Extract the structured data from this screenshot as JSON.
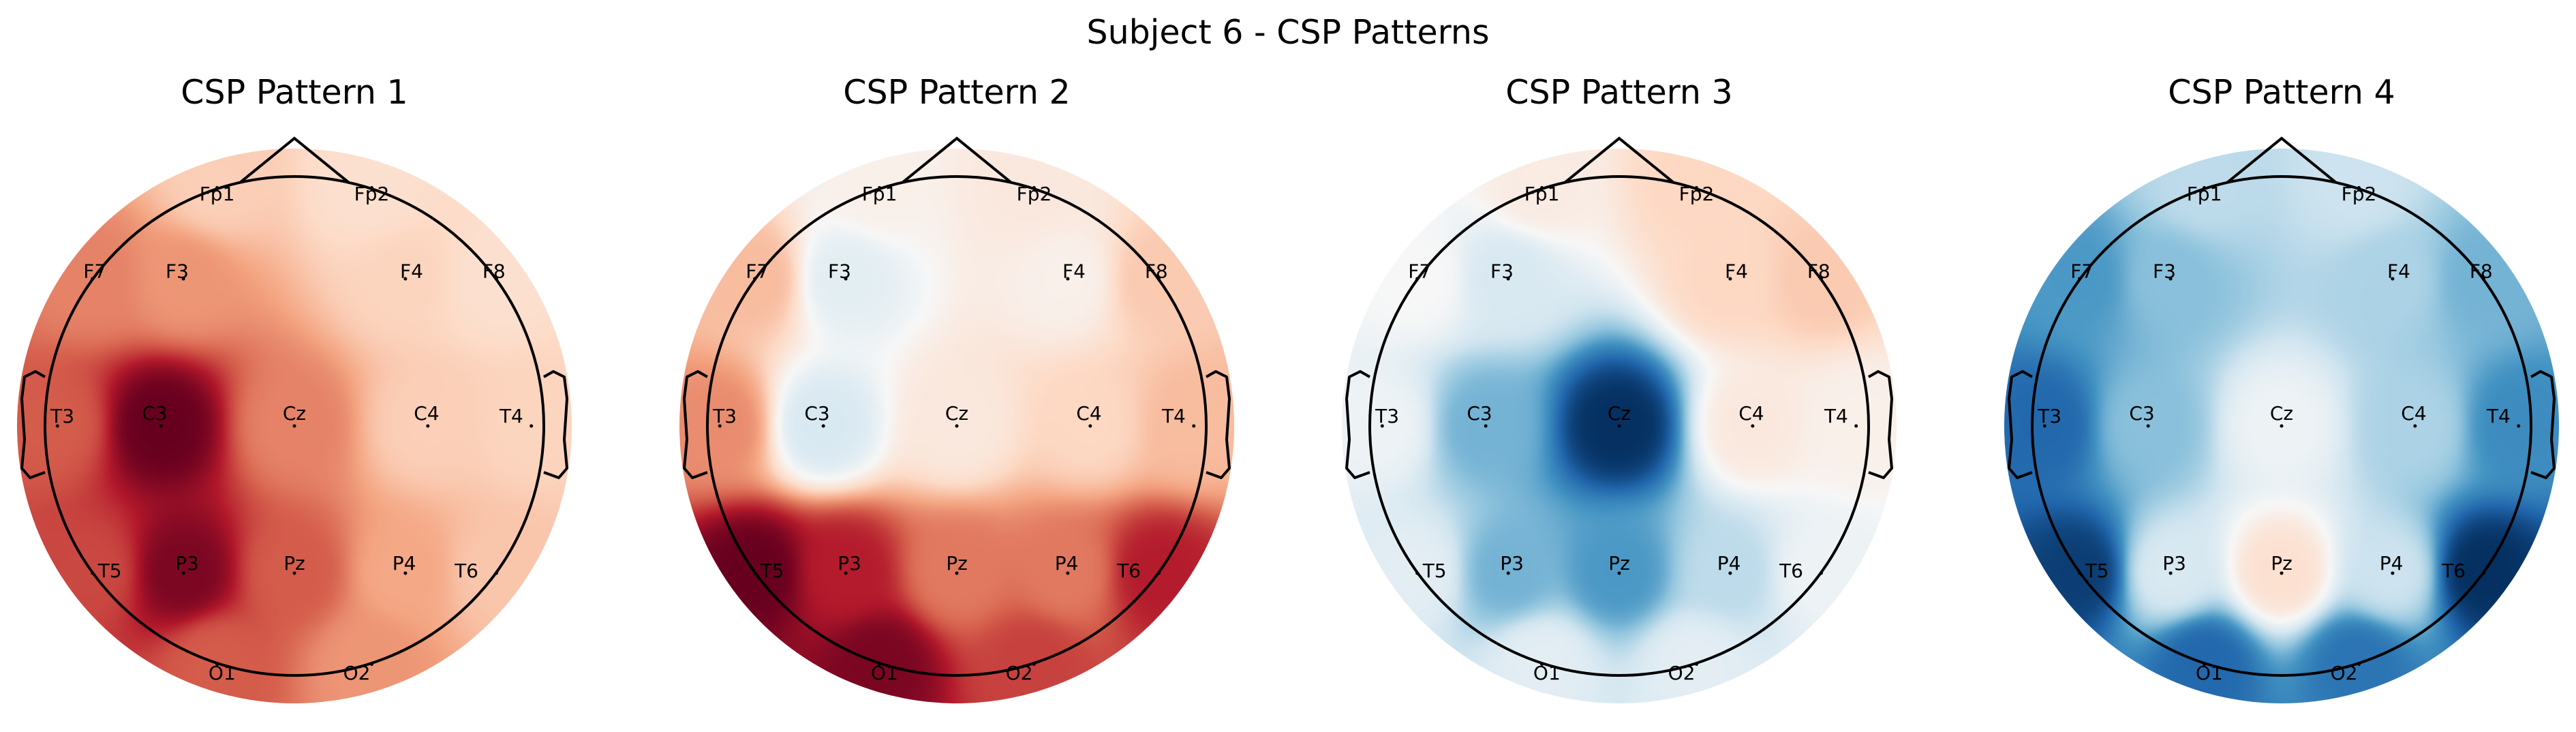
{
  "figure": {
    "suptitle": "Subject 6 - CSP Patterns"
  },
  "chart_data": [
    {
      "type": "heatmap",
      "subtype": "topomap",
      "title": "CSP Pattern 1",
      "colormap": "RdBu_r",
      "channels": [
        {
          "name": "Fp1",
          "value": 0.22
        },
        {
          "name": "Fp2",
          "value": 0.15
        },
        {
          "name": "F7",
          "value": 0.45
        },
        {
          "name": "F3",
          "value": 0.4
        },
        {
          "name": "F4",
          "value": 0.2
        },
        {
          "name": "F8",
          "value": 0.15
        },
        {
          "name": "T3",
          "value": 0.55
        },
        {
          "name": "C3",
          "value": 0.9
        },
        {
          "name": "Cz",
          "value": 0.45
        },
        {
          "name": "C4",
          "value": 0.22
        },
        {
          "name": "T4",
          "value": 0.2
        },
        {
          "name": "T5",
          "value": 0.6
        },
        {
          "name": "P3",
          "value": 0.85
        },
        {
          "name": "Pz",
          "value": 0.55
        },
        {
          "name": "P4",
          "value": 0.35
        },
        {
          "name": "T6",
          "value": 0.25
        },
        {
          "name": "O1",
          "value": 0.55
        },
        {
          "name": "O2",
          "value": 0.4
        }
      ]
    },
    {
      "type": "heatmap",
      "subtype": "topomap",
      "title": "CSP Pattern 2",
      "colormap": "RdBu_r",
      "channels": [
        {
          "name": "Fp1",
          "value": 0.05
        },
        {
          "name": "Fp2",
          "value": 0.1
        },
        {
          "name": "F7",
          "value": 0.3
        },
        {
          "name": "F3",
          "value": -0.1
        },
        {
          "name": "F4",
          "value": 0.05
        },
        {
          "name": "F8",
          "value": 0.25
        },
        {
          "name": "T3",
          "value": 0.45
        },
        {
          "name": "C3",
          "value": -0.15
        },
        {
          "name": "Cz",
          "value": 0.1
        },
        {
          "name": "C4",
          "value": 0.2
        },
        {
          "name": "T4",
          "value": 0.3
        },
        {
          "name": "T5",
          "value": 0.95
        },
        {
          "name": "P3",
          "value": 0.75
        },
        {
          "name": "Pz",
          "value": 0.5
        },
        {
          "name": "P4",
          "value": 0.5
        },
        {
          "name": "T6",
          "value": 0.75
        },
        {
          "name": "O1",
          "value": 0.9
        },
        {
          "name": "O2",
          "value": 0.65
        }
      ]
    },
    {
      "type": "heatmap",
      "subtype": "topomap",
      "title": "CSP Pattern 3",
      "colormap": "RdBu_r",
      "channels": [
        {
          "name": "Fp1",
          "value": 0.08
        },
        {
          "name": "Fp2",
          "value": 0.2
        },
        {
          "name": "F7",
          "value": 0.0
        },
        {
          "name": "F3",
          "value": -0.15
        },
        {
          "name": "F4",
          "value": 0.2
        },
        {
          "name": "F8",
          "value": 0.25
        },
        {
          "name": "T3",
          "value": -0.05
        },
        {
          "name": "C3",
          "value": -0.45
        },
        {
          "name": "Cz",
          "value": -0.95
        },
        {
          "name": "C4",
          "value": 0.1
        },
        {
          "name": "T4",
          "value": 0.05
        },
        {
          "name": "T5",
          "value": -0.1
        },
        {
          "name": "P3",
          "value": -0.45
        },
        {
          "name": "Pz",
          "value": -0.55
        },
        {
          "name": "P4",
          "value": -0.25
        },
        {
          "name": "T6",
          "value": -0.05
        },
        {
          "name": "O1",
          "value": -0.1
        },
        {
          "name": "O2",
          "value": -0.1
        }
      ]
    },
    {
      "type": "heatmap",
      "subtype": "topomap",
      "title": "CSP Pattern 4",
      "colormap": "RdBu_r",
      "channels": [
        {
          "name": "Fp1",
          "value": -0.25
        },
        {
          "name": "Fp2",
          "value": -0.2
        },
        {
          "name": "F7",
          "value": -0.55
        },
        {
          "name": "F3",
          "value": -0.4
        },
        {
          "name": "F4",
          "value": -0.3
        },
        {
          "name": "F8",
          "value": -0.45
        },
        {
          "name": "T3",
          "value": -0.75
        },
        {
          "name": "C3",
          "value": -0.4
        },
        {
          "name": "Cz",
          "value": -0.05
        },
        {
          "name": "C4",
          "value": -0.3
        },
        {
          "name": "T4",
          "value": -0.6
        },
        {
          "name": "T5",
          "value": -0.9
        },
        {
          "name": "P3",
          "value": -0.15
        },
        {
          "name": "Pz",
          "value": 0.15
        },
        {
          "name": "P4",
          "value": -0.2
        },
        {
          "name": "T6",
          "value": -0.95
        },
        {
          "name": "O1",
          "value": -0.75
        },
        {
          "name": "O2",
          "value": -0.7
        }
      ]
    }
  ]
}
